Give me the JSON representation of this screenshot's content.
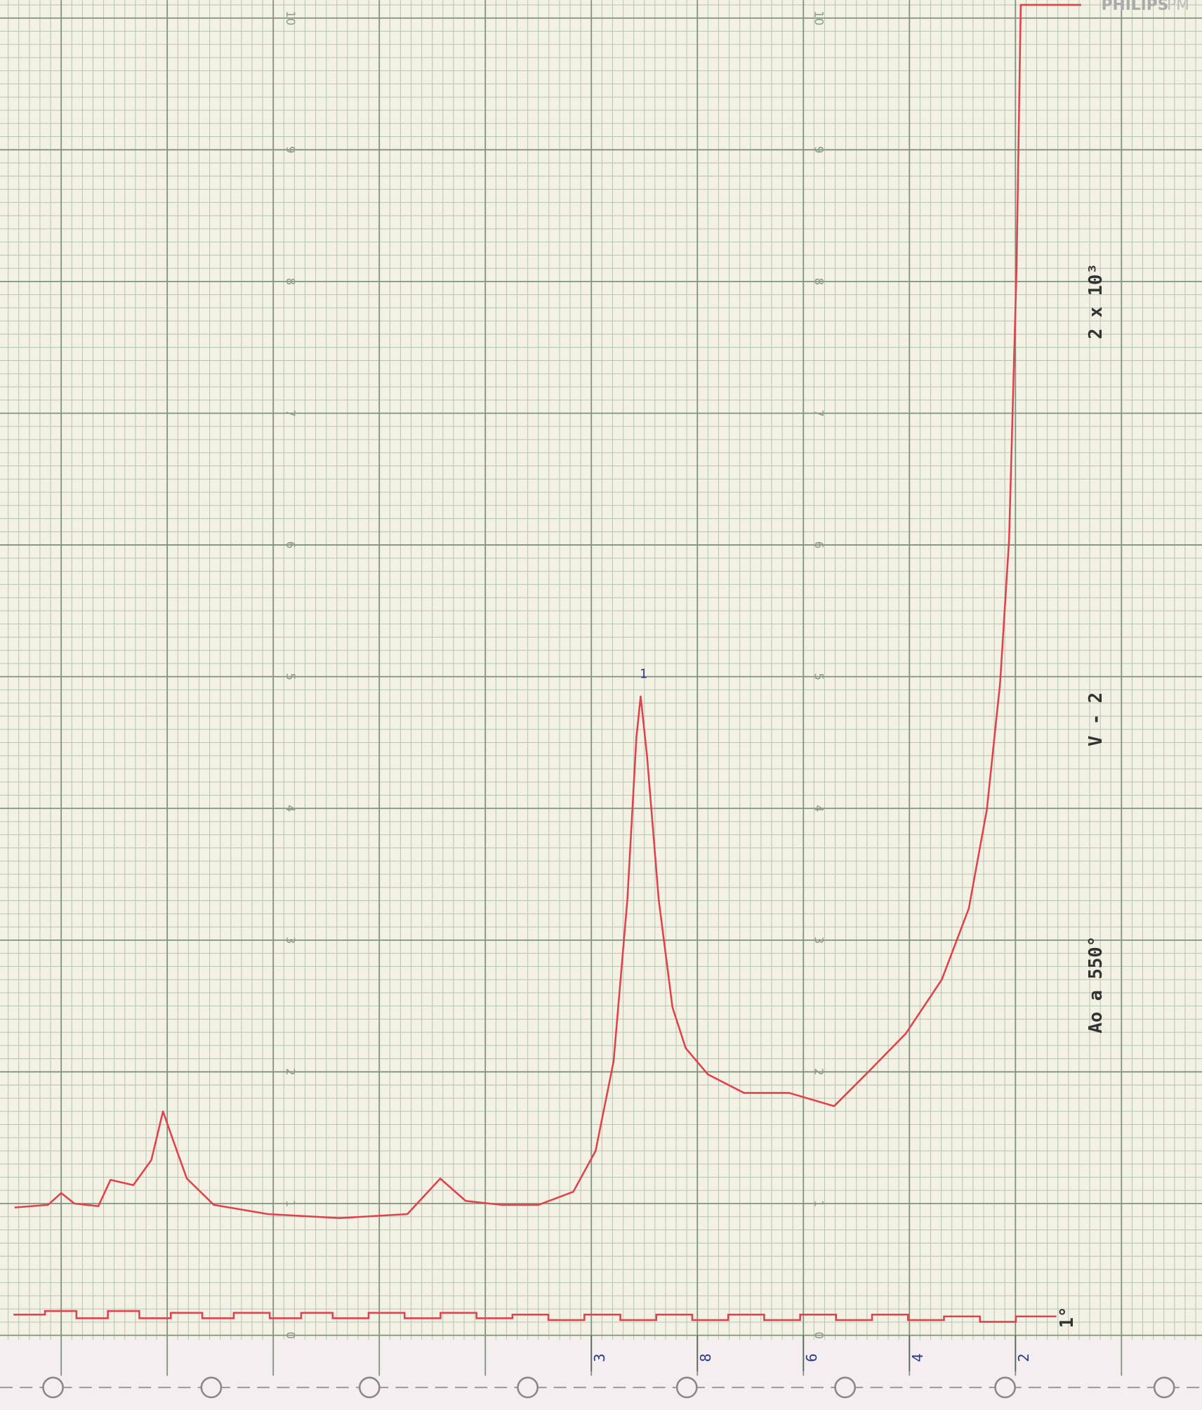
{
  "chart_data": {
    "type": "line",
    "brand": "PHILIPS",
    "brand_model": "PM",
    "annotations": [
      "2 x 10³",
      "V - 2",
      "Ao a 550°",
      "1",
      "1°"
    ],
    "x": [
      40.88,
      40.25,
      40.0,
      39.75,
      39.3,
      39.07,
      38.64,
      38.3,
      38.08,
      37.88,
      37.63,
      37.12,
      36.1,
      34.75,
      33.47,
      32.85,
      32.37,
      31.69,
      31.0,
      30.34,
      29.92,
      29.58,
      29.32,
      29.15,
      29.07,
      28.95,
      28.73,
      28.47,
      28.22,
      27.8,
      27.12,
      26.27,
      25.42,
      24.75,
      24.07,
      23.39,
      22.88,
      22.54,
      22.29,
      22.12,
      21.98,
      21.9,
      20.76
    ],
    "series": [
      {
        "color": "#e0424c",
        "values": [
          0.97,
          0.99,
          1.08,
          1.0,
          0.98,
          1.18,
          1.14,
          1.33,
          1.7,
          1.47,
          1.19,
          0.99,
          0.92,
          0.89,
          0.92,
          1.19,
          1.02,
          0.99,
          0.99,
          1.09,
          1.4,
          2.08,
          3.31,
          4.54,
          4.85,
          4.4,
          3.31,
          2.49,
          2.18,
          1.98,
          1.84,
          1.84,
          1.74,
          2.01,
          2.29,
          2.7,
          3.24,
          3.99,
          4.95,
          6.04,
          8.09,
          10.1,
          10.1
        ]
      }
    ],
    "xlim": [
      40.9,
      18.6
    ],
    "ylim": [
      0,
      10
    ],
    "xticks": [
      {
        "value": 30,
        "label": "3"
      },
      {
        "value": 28,
        "label": "8"
      },
      {
        "value": 26,
        "label": "6"
      },
      {
        "value": 24,
        "label": "4"
      },
      {
        "value": 22,
        "label": "2"
      }
    ],
    "yticks": [
      0,
      1,
      2,
      3,
      4,
      5,
      6,
      7,
      8,
      9,
      10
    ],
    "grid": true
  }
}
